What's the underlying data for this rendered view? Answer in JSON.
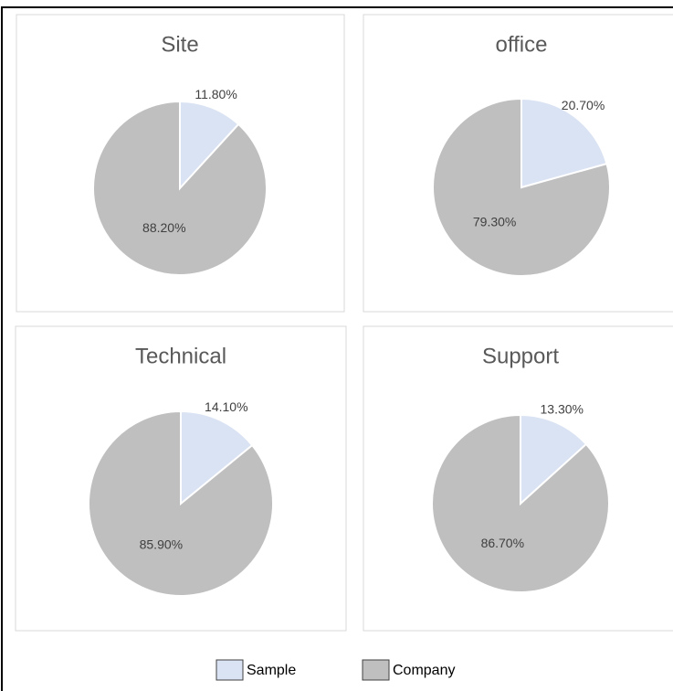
{
  "chart_data": [
    {
      "type": "pie",
      "title": "Site",
      "values": [
        11.8,
        88.2
      ],
      "value_labels": [
        "11.80%",
        "88.20%"
      ]
    },
    {
      "type": "pie",
      "title": "office",
      "values": [
        20.7,
        79.3
      ],
      "value_labels": [
        "20.70%",
        "79.30%"
      ]
    },
    {
      "type": "pie",
      "title": "Technical",
      "values": [
        14.1,
        85.9
      ],
      "value_labels": [
        "14.10%",
        "85.90%"
      ]
    },
    {
      "type": "pie",
      "title": "Support",
      "values": [
        13.3,
        86.7
      ],
      "value_labels": [
        "13.30%",
        "86.70%"
      ]
    }
  ],
  "legend": {
    "items": [
      {
        "name": "Sample",
        "color": "#dae3f3"
      },
      {
        "name": "Company",
        "color": "#bfbfbf"
      }
    ]
  }
}
